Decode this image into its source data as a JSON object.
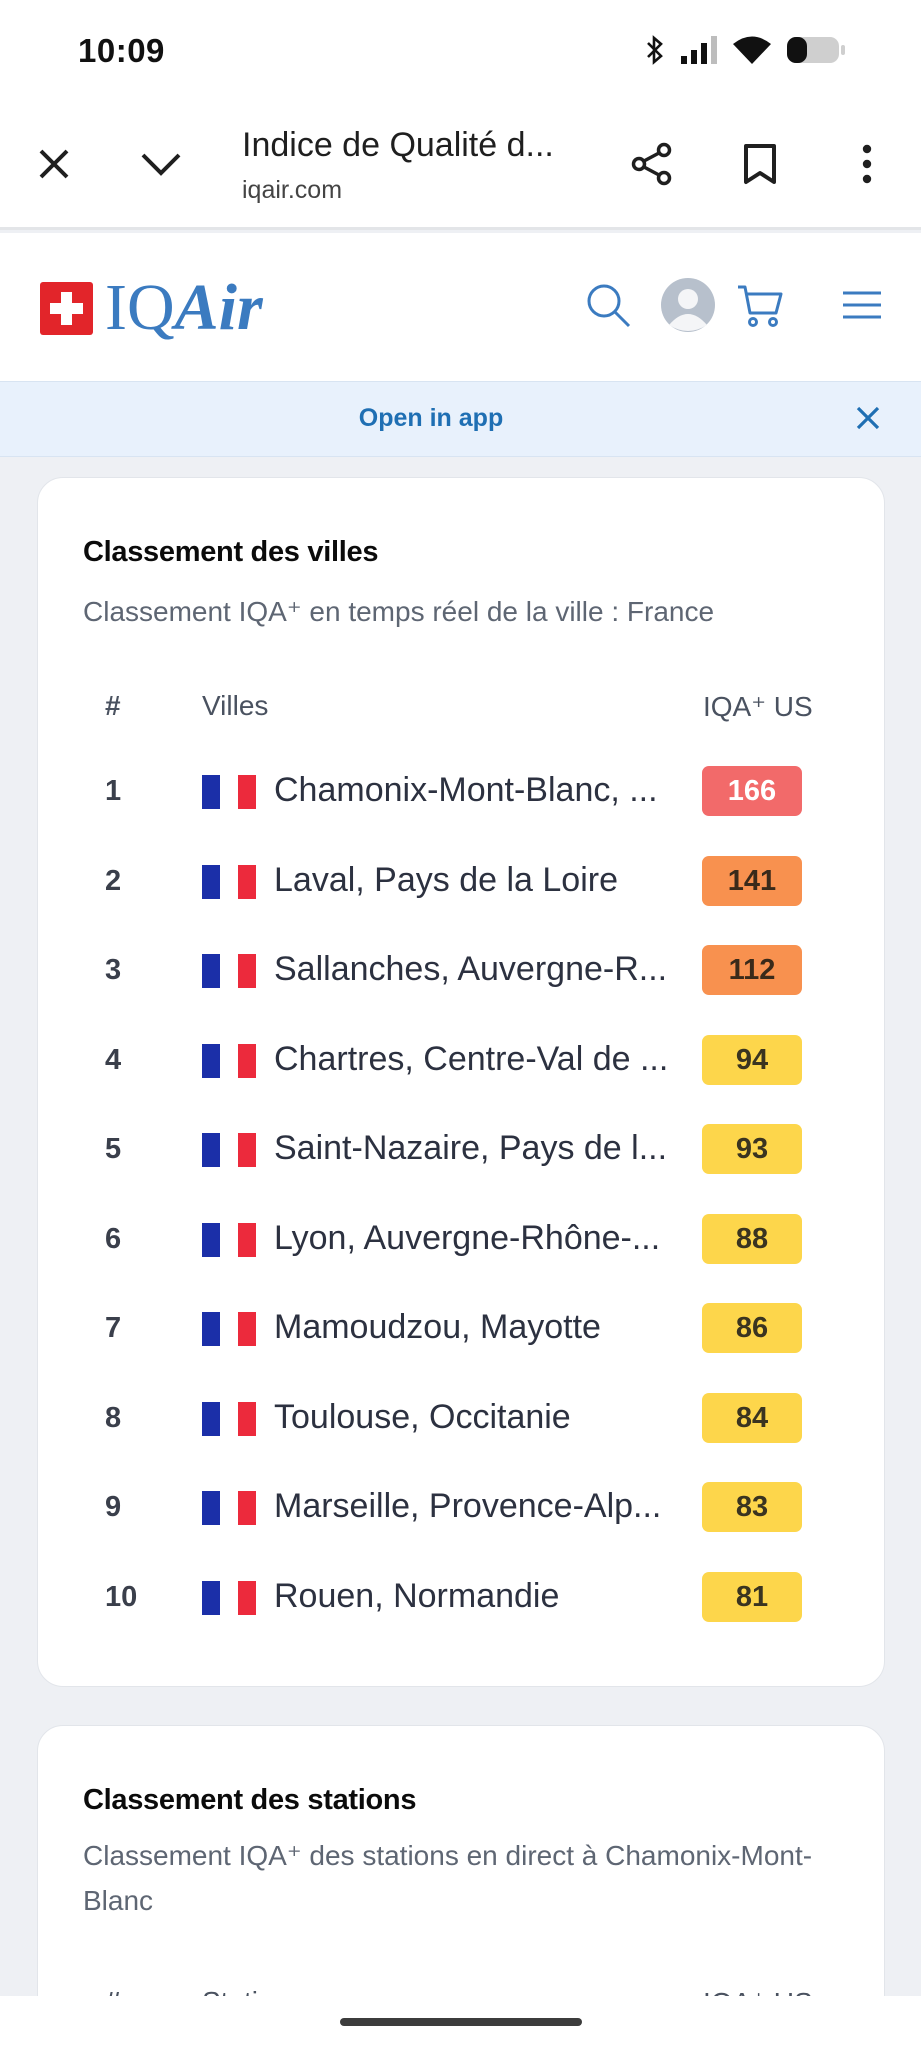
{
  "status_bar": {
    "time": "10:09",
    "icons": [
      "bluetooth-icon",
      "signal-icon",
      "wifi-icon",
      "battery-icon"
    ]
  },
  "browser": {
    "page_title": "Indice de Qualité d...",
    "url": "iqair.com",
    "icons": [
      "close-icon",
      "chevron-down-icon",
      "share-icon",
      "bookmark-icon",
      "more-vert-icon"
    ]
  },
  "header": {
    "logo_prefix": "IQ",
    "logo_suffix": "Air",
    "icons": [
      "search-icon",
      "avatar",
      "cart-icon",
      "menu-icon"
    ]
  },
  "app_banner": {
    "label": "Open in app"
  },
  "city_ranking": {
    "title": "Classement des villes",
    "subtitle": "Classement IQA⁺ en temps réel de la ville : France",
    "columns": {
      "rank": "#",
      "city": "Villes",
      "aqi": "IQA⁺ US"
    },
    "rows": [
      {
        "rank": "1",
        "city": "Chamonix-Mont-Blanc, ...",
        "aqi": "166",
        "level": "unhealthy"
      },
      {
        "rank": "2",
        "city": "Laval, Pays de la Loire",
        "aqi": "141",
        "level": "sensitive"
      },
      {
        "rank": "3",
        "city": "Sallanches, Auvergne-R...",
        "aqi": "112",
        "level": "sensitive"
      },
      {
        "rank": "4",
        "city": "Chartres, Centre-Val de ...",
        "aqi": "94",
        "level": "moderate"
      },
      {
        "rank": "5",
        "city": "Saint-Nazaire, Pays de l...",
        "aqi": "93",
        "level": "moderate"
      },
      {
        "rank": "6",
        "city": "Lyon, Auvergne-Rhône-...",
        "aqi": "88",
        "level": "moderate"
      },
      {
        "rank": "7",
        "city": "Mamoudzou, Mayotte",
        "aqi": "86",
        "level": "moderate"
      },
      {
        "rank": "8",
        "city": "Toulouse, Occitanie",
        "aqi": "84",
        "level": "moderate"
      },
      {
        "rank": "9",
        "city": "Marseille, Provence-Alp...",
        "aqi": "83",
        "level": "moderate"
      },
      {
        "rank": "10",
        "city": "Rouen, Normandie",
        "aqi": "81",
        "level": "moderate"
      }
    ]
  },
  "station_ranking": {
    "title": "Classement des stations",
    "subtitle": "Classement IQA⁺ des stations en direct à Chamonix-Mont-Blanc",
    "columns": {
      "rank": "#",
      "station": "Stations",
      "aqi": "IQA⁺ US"
    }
  },
  "colors": {
    "unhealthy": "#f26a6a",
    "sensitive": "#f8914f",
    "moderate": "#fdd64b",
    "brand_blue": "#3b7bc0",
    "brand_red": "#e2252a"
  }
}
